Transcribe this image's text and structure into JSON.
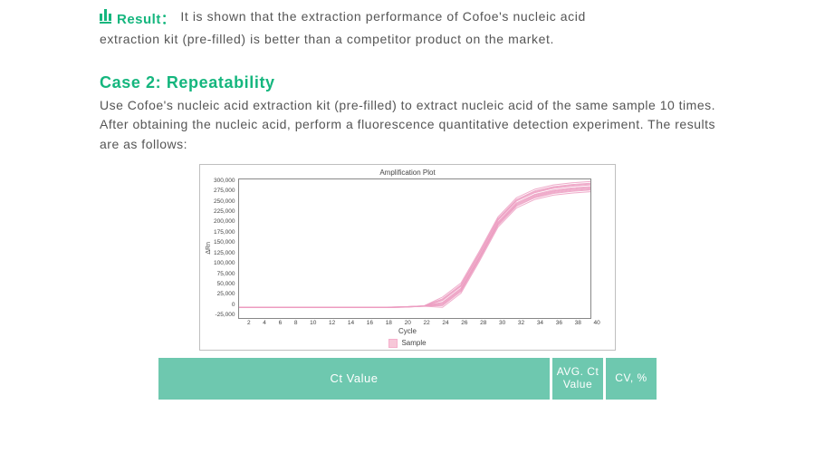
{
  "result": {
    "label": "Result：",
    "text_line1": "It is shown that the extraction performance of Cofoe's nucleic acid",
    "text_line2": "extraction kit (pre-filled) is better than a competitor product on the market."
  },
  "case2": {
    "title": "Case 2:  Repeatability",
    "body": "Use Cofoe's nucleic acid extraction kit (pre-filled) to extract nucleic acid of the same sample 10 times. After obtaining the nucleic acid, perform a fluorescence quantitative detection experiment. The results are as follows:"
  },
  "chart": {
    "type": "line",
    "title": "Amplification Plot",
    "xlabel": "Cycle",
    "ylabel": "ΔRn",
    "legend_label": "Sample",
    "xlim": [
      2,
      40
    ],
    "xticks": [
      "2",
      "4",
      "6",
      "8",
      "10",
      "12",
      "14",
      "16",
      "18",
      "20",
      "22",
      "24",
      "26",
      "28",
      "30",
      "32",
      "34",
      "36",
      "38",
      "40"
    ],
    "ylim": [
      -25000,
      300000
    ],
    "yticks": [
      "300,000",
      "275,000",
      "250,000",
      "225,000",
      "200,000",
      "175,000",
      "150,000",
      "125,000",
      "100,000",
      "75,000",
      "50,000",
      "25,000",
      "0",
      "-25,000"
    ],
    "series_color": "#ec9cc1",
    "series_width": 1.0,
    "background_color": "#ffffff",
    "border_color": "#888888",
    "n_curves": 10,
    "curve_offsets": [
      0,
      -4000,
      4000,
      -8000,
      8000,
      -12000,
      12000,
      -2000,
      6000,
      -6000
    ],
    "base_points": [
      [
        2,
        0
      ],
      [
        4,
        0
      ],
      [
        6,
        0
      ],
      [
        8,
        0
      ],
      [
        10,
        0
      ],
      [
        12,
        0
      ],
      [
        14,
        0
      ],
      [
        16,
        0
      ],
      [
        18,
        0
      ],
      [
        20,
        1000
      ],
      [
        22,
        3000
      ],
      [
        24,
        12000
      ],
      [
        26,
        45000
      ],
      [
        28,
        120000
      ],
      [
        30,
        200000
      ],
      [
        32,
        245000
      ],
      [
        34,
        265000
      ],
      [
        36,
        275000
      ],
      [
        38,
        280000
      ],
      [
        40,
        283000
      ]
    ]
  },
  "table": {
    "bg_color": "#6ec8af",
    "text_color": "#ffffff",
    "header1": "Ct Value",
    "header2": "AVG. Ct Value",
    "header3": "CV, %"
  }
}
